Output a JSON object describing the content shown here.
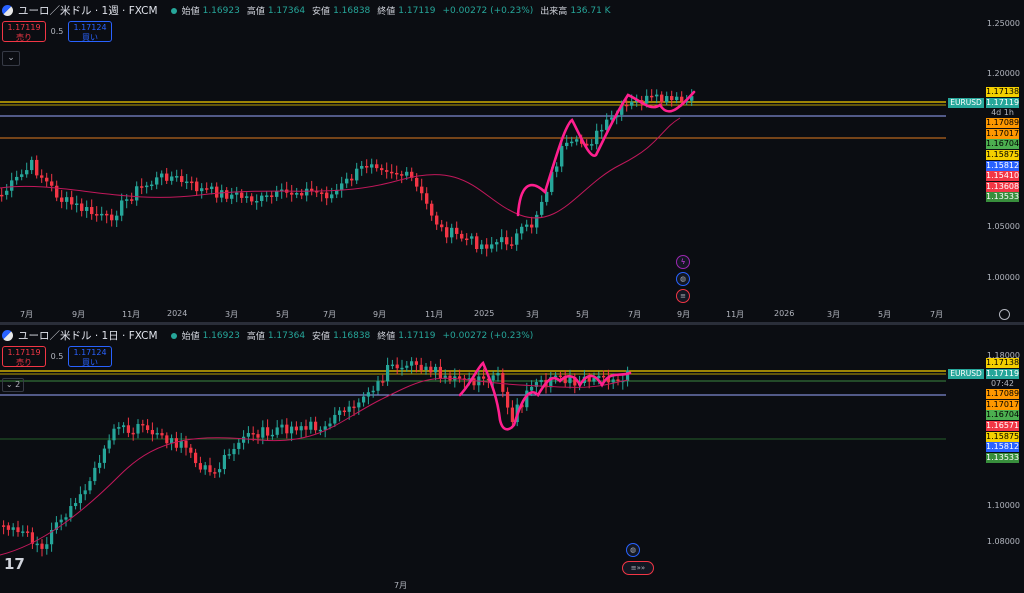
{
  "colors": {
    "up": "#26a69a",
    "down": "#f23645",
    "ma": "#c2185b",
    "drawing": "#ff1f8e",
    "yellow": "#f5d000",
    "orange": "#e07a20"
  },
  "top": {
    "title": "ユーロ／米ドル · 1週 · FXCM",
    "ohlc": {
      "open_label": "始値",
      "open": "1.16923",
      "high_label": "高値",
      "high": "1.17364",
      "low_label": "安値",
      "low": "1.16838",
      "close_label": "終値",
      "close": "1.17119",
      "change": "+0.00272 (+0.23%)",
      "volume_label": "出来高",
      "volume": "136.71 K"
    },
    "sell_price": "1.17119",
    "sell_label": "売り",
    "spread": "0.5",
    "buy_price": "1.17124",
    "buy_label": "買い",
    "collapse_icon": "chevron-down-icon",
    "price_axis": [
      "1.25000",
      "1.20000",
      "1.05000",
      "1.00000"
    ],
    "symbol_tag": "EURUSD",
    "countdown": "4d 1h",
    "tags": [
      {
        "v": "1.17138",
        "bg": "#f5d000",
        "fg": "#000"
      },
      {
        "v": "1.17119",
        "bg": "#26a69a",
        "fg": "#fff"
      },
      {
        "v": "1.17089",
        "bg": "#ff9800",
        "fg": "#000"
      },
      {
        "v": "1.17017",
        "bg": "#ff9800",
        "fg": "#000"
      },
      {
        "v": "1.16704",
        "bg": "#4caf50",
        "fg": "#000"
      },
      {
        "v": "1.15875",
        "bg": "#f5d000",
        "fg": "#000"
      },
      {
        "v": "1.15812",
        "bg": "#2962ff",
        "fg": "#fff"
      },
      {
        "v": "1.15410",
        "bg": "#f23645",
        "fg": "#fff"
      },
      {
        "v": "1.13608",
        "bg": "#f23645",
        "fg": "#fff"
      },
      {
        "v": "1.13533",
        "bg": "#388e3c",
        "fg": "#fff"
      }
    ],
    "time_axis": [
      "7月",
      "9月",
      "11月",
      "2024",
      "3月",
      "5月",
      "7月",
      "9月",
      "11月",
      "2025",
      "3月",
      "5月",
      "7月",
      "9月",
      "11月",
      "2026",
      "3月",
      "5月",
      "7月"
    ]
  },
  "bottom": {
    "title": "ユーロ／米ドル · 1日 · FXCM",
    "ohlc": {
      "open_label": "始値",
      "open": "1.16923",
      "high_label": "高値",
      "high": "1.17364",
      "low_label": "安値",
      "low": "1.16838",
      "close_label": "終値",
      "close": "1.17119",
      "change": "+0.00272 (+0.23%)"
    },
    "sell_price": "1.17119",
    "sell_label": "売り",
    "spread": "0.5",
    "buy_price": "1.17124",
    "buy_label": "買い",
    "collapse_label": "2",
    "price_axis": [
      "1.18000",
      "1.10000",
      "1.08000"
    ],
    "symbol_tag": "EURUSD",
    "countdown": "07:42",
    "tags": [
      {
        "v": "1.17138",
        "bg": "#f5d000",
        "fg": "#000"
      },
      {
        "v": "1.17119",
        "bg": "#26a69a",
        "fg": "#fff"
      },
      {
        "v": "1.17089",
        "bg": "#ff9800",
        "fg": "#000"
      },
      {
        "v": "1.17017",
        "bg": "#ff9800",
        "fg": "#000"
      },
      {
        "v": "1.16704",
        "bg": "#4caf50",
        "fg": "#000"
      },
      {
        "v": "1.16571",
        "bg": "#f23645",
        "fg": "#fff"
      },
      {
        "v": "1.15875",
        "bg": "#f5d000",
        "fg": "#000"
      },
      {
        "v": "1.15812",
        "bg": "#2962ff",
        "fg": "#fff"
      },
      {
        "v": "1.13533",
        "bg": "#388e3c",
        "fg": "#fff"
      }
    ],
    "time_axis": [
      "7月"
    ],
    "logo": "TradingView"
  }
}
